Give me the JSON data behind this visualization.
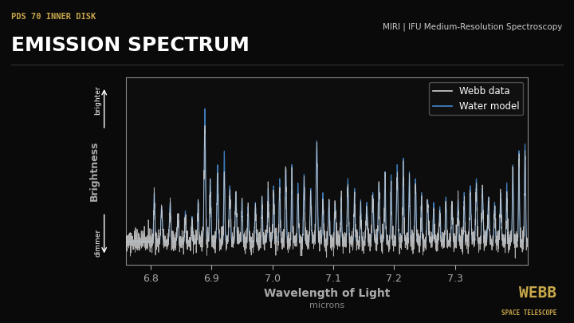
{
  "bg_color": "#0a0a0a",
  "plot_bg_color": "#0d0d0d",
  "subtitle": "PDS 70 INNER DISK",
  "title": "EMISSION SPECTRUM",
  "instrument_label": "MIRI | IFU Medium-Resolution Spectroscopy",
  "xlabel": "Wavelength of Light",
  "xlabel_sub": "microns",
  "ylabel": "Brightness",
  "ylabel_top": "brighter",
  "ylabel_bottom": "dimmer",
  "xlim": [
    6.76,
    7.42
  ],
  "xticks": [
    6.8,
    6.9,
    7.0,
    7.1,
    7.2,
    7.3
  ],
  "subtitle_color": "#c8a84b",
  "title_color": "#ffffff",
  "instrument_color": "#cccccc",
  "axis_color": "#888888",
  "tick_color": "#aaaaaa",
  "webb_data_color": "#d0d0d0",
  "water_model_color": "#4488cc",
  "legend_bg": "#1a1a1a",
  "legend_edge": "#555555",
  "webb_logo_color": "#c8a84b",
  "seed": 42
}
